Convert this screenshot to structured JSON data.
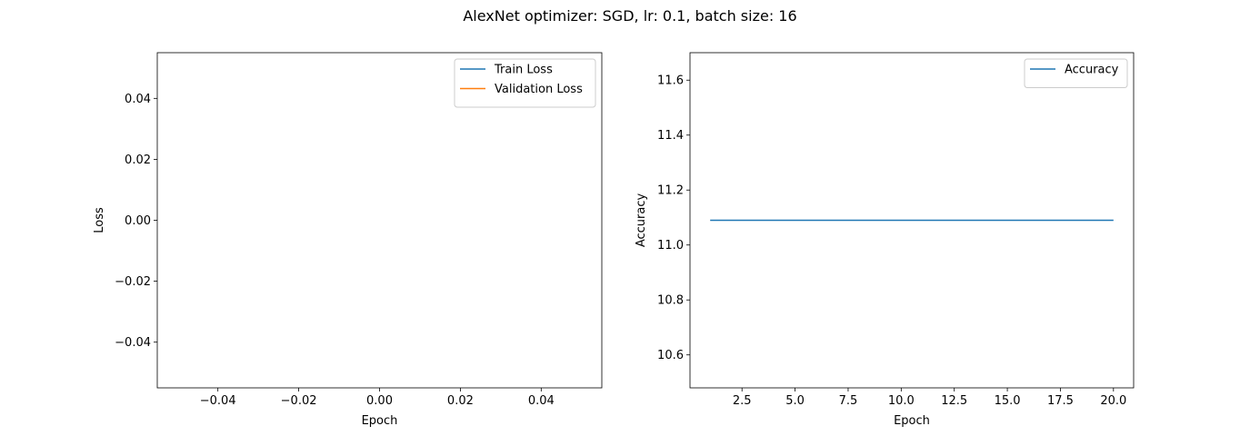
{
  "figure": {
    "title": "AlexNet optimizer: SGD, lr: 0.1, batch size: 16"
  },
  "chart_data": [
    {
      "type": "line",
      "xlabel": "Epoch",
      "ylabel": "Loss",
      "xlim": [
        -0.055,
        0.055
      ],
      "ylim": [
        -0.055,
        0.055
      ],
      "xticks": [
        "−0.04",
        "−0.02",
        "0.00",
        "0.02",
        "0.04"
      ],
      "xtick_values": [
        -0.04,
        -0.02,
        0.0,
        0.02,
        0.04
      ],
      "yticks": [
        "−0.04",
        "−0.02",
        "0.00",
        "0.02",
        "0.04"
      ],
      "ytick_values": [
        -0.04,
        -0.02,
        0.0,
        0.02,
        0.04
      ],
      "legend_position": "top-right",
      "grid": false,
      "series": [
        {
          "name": "Train Loss",
          "color": "#1f77b4",
          "x": [],
          "y": []
        },
        {
          "name": "Validation Loss",
          "color": "#ff7f0e",
          "x": [],
          "y": []
        }
      ]
    },
    {
      "type": "line",
      "xlabel": "Epoch",
      "ylabel": "Accuracy",
      "xlim": [
        0.05,
        20.95
      ],
      "ylim": [
        10.48,
        11.7
      ],
      "xticks": [
        "2.5",
        "5.0",
        "7.5",
        "10.0",
        "12.5",
        "15.0",
        "17.5",
        "20.0"
      ],
      "xtick_values": [
        2.5,
        5.0,
        7.5,
        10.0,
        12.5,
        15.0,
        17.5,
        20.0
      ],
      "yticks": [
        "10.6",
        "10.8",
        "11.0",
        "11.2",
        "11.4",
        "11.6"
      ],
      "ytick_values": [
        10.6,
        10.8,
        11.0,
        11.2,
        11.4,
        11.6
      ],
      "legend_position": "top-right",
      "grid": false,
      "series": [
        {
          "name": "Accuracy",
          "color": "#1f77b4",
          "x": [
            1,
            2,
            3,
            4,
            5,
            6,
            7,
            8,
            9,
            10,
            11,
            12,
            13,
            14,
            15,
            16,
            17,
            18,
            19,
            20
          ],
          "y": [
            11.09,
            11.09,
            11.09,
            11.09,
            11.09,
            11.09,
            11.09,
            11.09,
            11.09,
            11.09,
            11.09,
            11.09,
            11.09,
            11.09,
            11.09,
            11.09,
            11.09,
            11.09,
            11.09,
            11.09
          ]
        }
      ]
    }
  ]
}
